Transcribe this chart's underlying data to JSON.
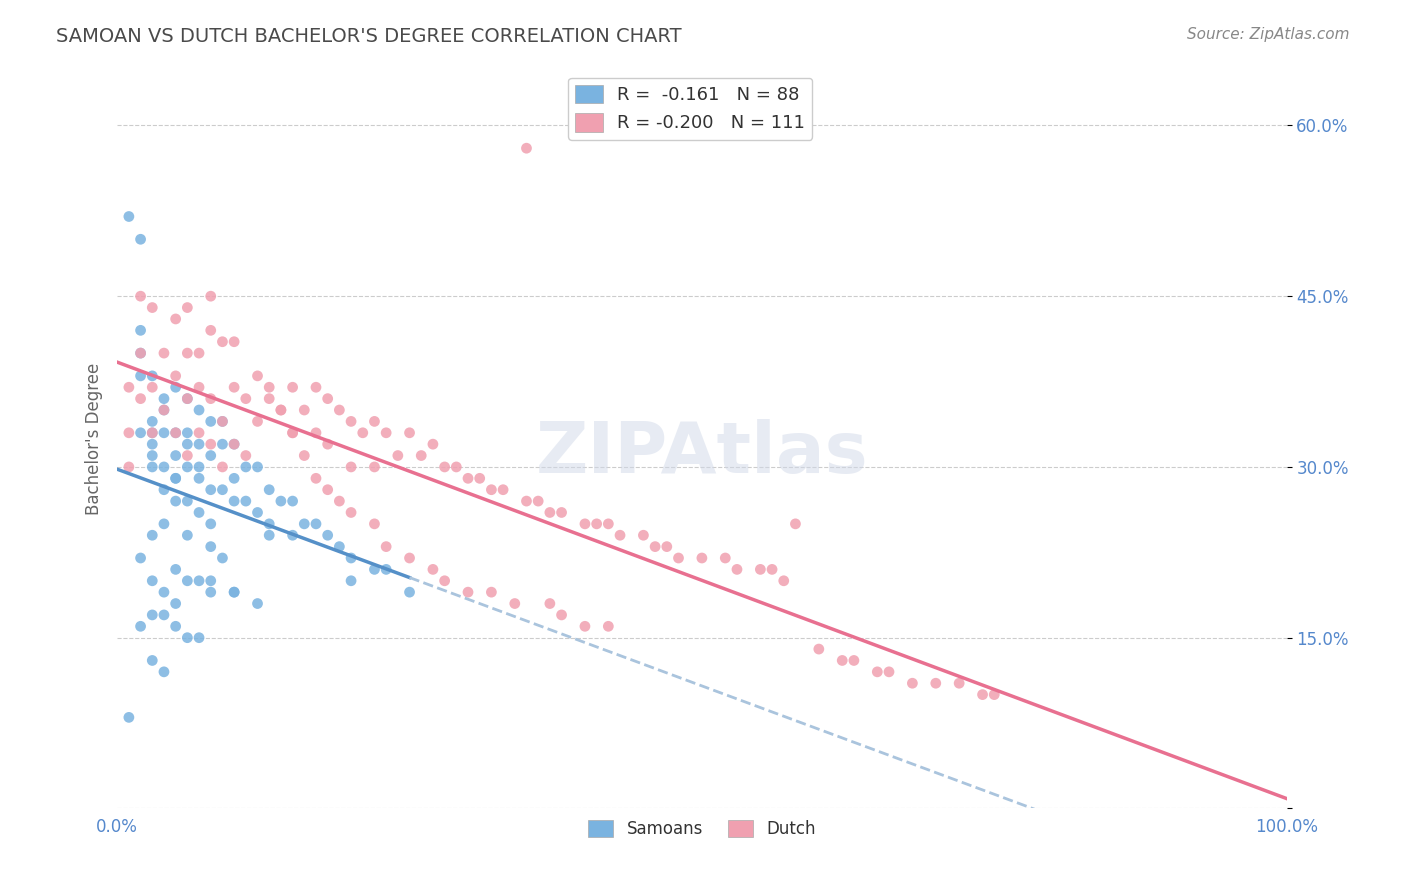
{
  "title": "SAMOAN VS DUTCH BACHELOR'S DEGREE CORRELATION CHART",
  "source_text": "Source: ZipAtlas.com",
  "xlabel": "",
  "ylabel": "Bachelor's Degree",
  "xlim": [
    0.0,
    1.0
  ],
  "ylim": [
    0.0,
    0.65
  ],
  "x_ticks": [
    0.0,
    0.25,
    0.5,
    0.75,
    1.0
  ],
  "x_tick_labels": [
    "0.0%",
    "",
    "",
    "",
    "100.0%"
  ],
  "y_ticks": [
    0.0,
    0.15,
    0.3,
    0.45,
    0.6
  ],
  "y_tick_labels": [
    "",
    "15.0%",
    "30.0%",
    "45.0%",
    "60.0%"
  ],
  "background_color": "#ffffff",
  "grid_color": "#cccccc",
  "title_color": "#4a4a4a",
  "watermark_text": "ZIPAtlas",
  "watermark_color": "#d0d8e8",
  "legend_r1": "R =  -0.161",
  "legend_n1": "N = 88",
  "legend_r2": "R = -0.200",
  "legend_n2": "N = 111",
  "legend_label1": "Samoans",
  "legend_label2": "Dutch",
  "samoan_color": "#7ab3e0",
  "dutch_color": "#f0a0b0",
  "samoan_line_color": "#5590c8",
  "dutch_line_color": "#e87090",
  "dashed_line_color": "#aac4dd",
  "samoan_scatter_x": [
    0.01,
    0.02,
    0.02,
    0.02,
    0.03,
    0.03,
    0.03,
    0.03,
    0.04,
    0.04,
    0.04,
    0.04,
    0.05,
    0.05,
    0.05,
    0.05,
    0.05,
    0.06,
    0.06,
    0.06,
    0.07,
    0.07,
    0.07,
    0.08,
    0.08,
    0.09,
    0.09,
    0.09,
    0.1,
    0.1,
    0.1,
    0.11,
    0.11,
    0.12,
    0.12,
    0.13,
    0.13,
    0.13,
    0.14,
    0.15,
    0.15,
    0.16,
    0.17,
    0.18,
    0.19,
    0.2,
    0.2,
    0.22,
    0.23,
    0.25,
    0.05,
    0.06,
    0.06,
    0.07,
    0.08,
    0.08,
    0.09,
    0.04,
    0.03,
    0.02,
    0.01,
    0.02,
    0.03,
    0.04,
    0.05,
    0.07,
    0.08,
    0.1,
    0.03,
    0.04,
    0.05,
    0.06,
    0.07,
    0.02,
    0.03,
    0.04,
    0.02,
    0.03,
    0.04,
    0.05,
    0.06,
    0.08,
    0.1,
    0.12,
    0.06,
    0.07,
    0.08,
    0.03
  ],
  "samoan_scatter_y": [
    0.52,
    0.5,
    0.33,
    0.4,
    0.34,
    0.33,
    0.32,
    0.3,
    0.35,
    0.33,
    0.3,
    0.28,
    0.37,
    0.33,
    0.31,
    0.29,
    0.27,
    0.36,
    0.33,
    0.3,
    0.35,
    0.32,
    0.29,
    0.34,
    0.31,
    0.34,
    0.32,
    0.28,
    0.32,
    0.29,
    0.27,
    0.3,
    0.27,
    0.3,
    0.26,
    0.28,
    0.25,
    0.24,
    0.27,
    0.27,
    0.24,
    0.25,
    0.25,
    0.24,
    0.23,
    0.22,
    0.2,
    0.21,
    0.21,
    0.19,
    0.29,
    0.27,
    0.24,
    0.26,
    0.25,
    0.23,
    0.22,
    0.36,
    0.31,
    0.38,
    0.08,
    0.22,
    0.2,
    0.19,
    0.18,
    0.2,
    0.2,
    0.19,
    0.17,
    0.17,
    0.16,
    0.15,
    0.15,
    0.16,
    0.13,
    0.12,
    0.42,
    0.38,
    0.25,
    0.21,
    0.2,
    0.19,
    0.19,
    0.18,
    0.32,
    0.3,
    0.28,
    0.24
  ],
  "dutch_scatter_x": [
    0.01,
    0.01,
    0.01,
    0.02,
    0.02,
    0.03,
    0.03,
    0.04,
    0.05,
    0.05,
    0.06,
    0.06,
    0.06,
    0.07,
    0.07,
    0.08,
    0.08,
    0.08,
    0.09,
    0.09,
    0.1,
    0.1,
    0.11,
    0.11,
    0.12,
    0.13,
    0.14,
    0.15,
    0.15,
    0.16,
    0.17,
    0.17,
    0.18,
    0.18,
    0.19,
    0.2,
    0.2,
    0.21,
    0.22,
    0.22,
    0.23,
    0.24,
    0.25,
    0.26,
    0.27,
    0.28,
    0.29,
    0.3,
    0.31,
    0.32,
    0.33,
    0.35,
    0.36,
    0.37,
    0.38,
    0.4,
    0.41,
    0.42,
    0.43,
    0.45,
    0.46,
    0.47,
    0.48,
    0.5,
    0.52,
    0.53,
    0.55,
    0.56,
    0.57,
    0.58,
    0.6,
    0.62,
    0.63,
    0.65,
    0.66,
    0.68,
    0.7,
    0.72,
    0.74,
    0.75,
    0.02,
    0.03,
    0.04,
    0.05,
    0.06,
    0.07,
    0.08,
    0.09,
    0.1,
    0.12,
    0.13,
    0.14,
    0.15,
    0.16,
    0.17,
    0.18,
    0.19,
    0.2,
    0.22,
    0.23,
    0.25,
    0.27,
    0.28,
    0.3,
    0.32,
    0.34,
    0.35,
    0.37,
    0.38,
    0.4,
    0.42
  ],
  "dutch_scatter_y": [
    0.37,
    0.33,
    0.3,
    0.4,
    0.36,
    0.37,
    0.33,
    0.35,
    0.38,
    0.33,
    0.4,
    0.36,
    0.31,
    0.37,
    0.33,
    0.42,
    0.36,
    0.32,
    0.34,
    0.3,
    0.37,
    0.32,
    0.36,
    0.31,
    0.34,
    0.36,
    0.35,
    0.37,
    0.33,
    0.35,
    0.37,
    0.33,
    0.36,
    0.32,
    0.35,
    0.34,
    0.3,
    0.33,
    0.34,
    0.3,
    0.33,
    0.31,
    0.33,
    0.31,
    0.32,
    0.3,
    0.3,
    0.29,
    0.29,
    0.28,
    0.28,
    0.27,
    0.27,
    0.26,
    0.26,
    0.25,
    0.25,
    0.25,
    0.24,
    0.24,
    0.23,
    0.23,
    0.22,
    0.22,
    0.22,
    0.21,
    0.21,
    0.21,
    0.2,
    0.25,
    0.14,
    0.13,
    0.13,
    0.12,
    0.12,
    0.11,
    0.11,
    0.11,
    0.1,
    0.1,
    0.45,
    0.44,
    0.4,
    0.43,
    0.44,
    0.4,
    0.45,
    0.41,
    0.41,
    0.38,
    0.37,
    0.35,
    0.33,
    0.31,
    0.29,
    0.28,
    0.27,
    0.26,
    0.25,
    0.23,
    0.22,
    0.21,
    0.2,
    0.19,
    0.19,
    0.18,
    0.58,
    0.18,
    0.17,
    0.16,
    0.16
  ]
}
